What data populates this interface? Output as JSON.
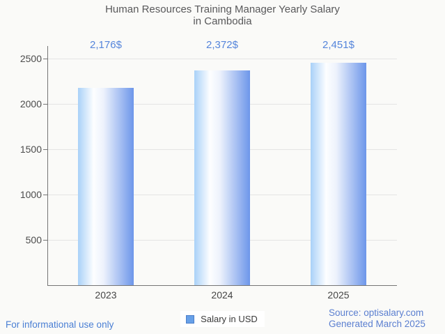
{
  "title": {
    "line1": "Human Resources Training Manager Yearly Salary",
    "line2": "in Cambodia"
  },
  "chart_data": {
    "type": "bar",
    "title": "Human Resources Training Manager Yearly Salary in Cambodia",
    "categories": [
      "2023",
      "2024",
      "2025"
    ],
    "values": [
      2176,
      2372,
      2451
    ],
    "value_labels": [
      "2,176$",
      "2,372$",
      "2,451$"
    ],
    "series": [
      {
        "name": "Salary in USD",
        "values": [
          2176,
          2372,
          2451
        ]
      }
    ],
    "xlabel": "",
    "ylabel": "",
    "ylim": [
      0,
      2500
    ],
    "yticks": [
      500,
      1000,
      1500,
      2000,
      2500
    ],
    "grid": true,
    "legend_position": "bottom"
  },
  "legend": {
    "label": "Salary in USD"
  },
  "footer": {
    "left": "For informational use only",
    "source": "Source: optisalary.com",
    "generated": "Generated March 2025"
  },
  "colors": {
    "accent_blue": "#5585db",
    "footer_blue": "#4a7fd4",
    "source_blue": "#5b7fd0",
    "bar_gradient_left": "#a9d1f8",
    "bar_gradient_mid": "#ffffff",
    "bar_gradient_right": "#6d96ea",
    "legend_swatch_fill": "#67a0e8",
    "legend_swatch_border": "#4b7ec9",
    "axis": "#757575",
    "gridline": "#e4e4e4",
    "title_text": "#58585a",
    "background": "#fafaf8"
  }
}
